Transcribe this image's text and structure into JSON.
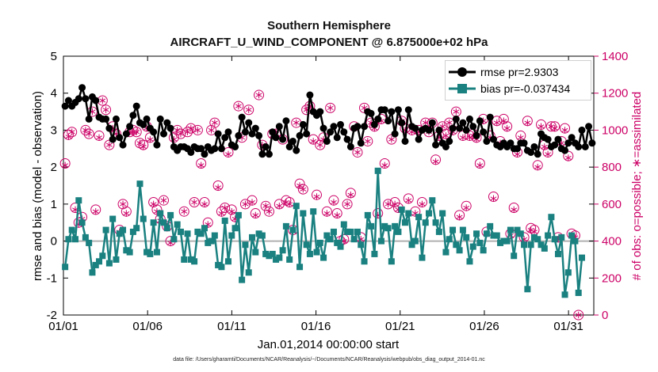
{
  "chart_data": {
    "type": "line",
    "title": "Southern Hemisphere",
    "subtitle": "AIRCRAFT_U_WIND_COMPONENT @ 6.875000e+02 hPa",
    "xlabel": "Jan.01,2014 00:00:00 start",
    "ylabel": "rmse and bias (model - observation)",
    "ylabel_right": "# of obs: o=possible; ∗=assimilated",
    "footer": "data file: /Users/gharamti/Documents/NCAR/Reanalysis/~/Documents/NCAR/Reanalysis/webpub/obs_diag_output_2014-01.nc",
    "x_ticks": [
      "01/01",
      "01/06",
      "01/11",
      "01/16",
      "01/21",
      "01/26",
      "01/31"
    ],
    "xlim_days": [
      1,
      32.5
    ],
    "ylim": [
      -2,
      5
    ],
    "yticks": [
      "-2",
      "-1",
      "0",
      "1",
      "2",
      "3",
      "4",
      "5"
    ],
    "ylim_right": [
      0,
      1400
    ],
    "yticks_right": [
      "0",
      "200",
      "400",
      "600",
      "800",
      "1000",
      "1200",
      "1400"
    ],
    "grid": false,
    "legend_position": "top-right",
    "colors": {
      "rmse": "#000000",
      "bias": "#1a8080",
      "obs": "#cc0066",
      "zero_line": "#b0b0b0"
    },
    "series": [
      {
        "name": "rmse pr=2.9303",
        "marker": "circle",
        "values": [
          3.65,
          3.8,
          3.65,
          3.75,
          3.85,
          4.15,
          3.85,
          3.3,
          3.9,
          3.8,
          3.35,
          3.3,
          3.3,
          3.05,
          2.75,
          3.3,
          2.8,
          2.6,
          2.9,
          3.1,
          3.4,
          3.65,
          3.2,
          3.15,
          3.3,
          3.05,
          2.95,
          2.6,
          3.3,
          2.9,
          3.2,
          3.05,
          2.55,
          2.45,
          2.55,
          2.55,
          2.5,
          2.4,
          2.55,
          2.5,
          2.5,
          2.35,
          2.55,
          2.45,
          2.5,
          2.9,
          2.5,
          2.8,
          2.95,
          2.6,
          2.55,
          2.85,
          3.35,
          2.95,
          3.2,
          2.9,
          3.05,
          2.85,
          2.35,
          2.55,
          2.35,
          2.95,
          2.8,
          3.1,
          2.75,
          3.25,
          2.55,
          2.7,
          2.45,
          2.85,
          3.15,
          2.9,
          3.95,
          3.5,
          3.4,
          3.5,
          3.05,
          2.7,
          2.95,
          3.1,
          2.8,
          3.15,
          2.95,
          2.75,
          2.55,
          3.05,
          3.1,
          2.65,
          3.1,
          3.5,
          3.45,
          3.15,
          3.3,
          3.55,
          3.55,
          3.25,
          3.5,
          2.9,
          3.55,
          3.2,
          2.7,
          3.55,
          3.1,
          3.05,
          2.75,
          3.0,
          3.05,
          3.0,
          3.2,
          2.6,
          3.0,
          2.65,
          2.55,
          2.7,
          3.05,
          3.3,
          3.05,
          3.2,
          3.0,
          3.3,
          3.1,
          2.85,
          3.25,
          2.95,
          2.7,
          3.35,
          2.75,
          2.6,
          2.55,
          2.65,
          2.55,
          2.65,
          2.5,
          2.5,
          2.65,
          2.65,
          2.45,
          2.4,
          2.55,
          2.35,
          2.9,
          2.8,
          2.75,
          2.55,
          2.6,
          2.75,
          2.5,
          2.45,
          2.65,
          2.8,
          2.65,
          2.55,
          3.0,
          2.55,
          3.1,
          2.65
        ]
      },
      {
        "name": "bias pr=-0.037434",
        "marker": "square",
        "values": [
          -0.7,
          0.05,
          0.3,
          0.05,
          1.1,
          0.5,
          0.1,
          -0.05,
          -0.85,
          -0.65,
          -0.55,
          -0.4,
          0.3,
          -0.6,
          0.6,
          -0.5,
          0.2,
          0.3,
          -0.25,
          -0.3,
          0.25,
          0.35,
          1.55,
          0.6,
          -0.3,
          -0.35,
          0.5,
          -0.3,
          0.75,
          0.5,
          0.35,
          0.7,
          0.05,
          0.45,
          0.25,
          -0.5,
          0.2,
          -0.5,
          -0.55,
          0.25,
          0.2,
          0.35,
          -0.05,
          0.0,
          0.15,
          -0.65,
          -0.7,
          0.55,
          -0.55,
          0.15,
          0.35,
          0.7,
          -1.05,
          -0.1,
          -0.85,
          0.1,
          -0.3,
          0.2,
          0.15,
          -0.35,
          -0.4,
          -0.35,
          -0.5,
          -0.45,
          -0.25,
          0.4,
          -0.5,
          0.3,
          0.95,
          -0.7,
          0.75,
          -0.1,
          -0.35,
          0.8,
          -0.3,
          -0.05,
          -0.45,
          0.15,
          0.05,
          0.25,
          -0.05,
          -0.15,
          0.45,
          0.25,
          0.25,
          0.05,
          0.25,
          -0.1,
          -0.55,
          0.7,
          0.4,
          -0.35,
          1.9,
          0.0,
          0.4,
          0.35,
          -0.55,
          0.4,
          0.25,
          0.85,
          0.5,
          0.75,
          -0.1,
          0.0,
          0.65,
          -0.45,
          0.5,
          0.75,
          1.1,
          0.5,
          0.25,
          0.75,
          -0.3,
          0.05,
          0.3,
          -0.1,
          -0.25,
          0.3,
          0.1,
          -0.55,
          -0.15,
          0.2,
          -0.05,
          -0.25,
          0.2,
          0.4,
          0.15,
          0.15,
          -0.05,
          0.0,
          0.0,
          0.3,
          -0.4,
          0.3,
          0.2,
          -0.1,
          -1.3,
          -0.1,
          0.1,
          0.05,
          -0.1,
          -0.2,
          0.15,
          0.65,
          0.05,
          -0.35,
          0.1,
          -1.45,
          -0.85,
          0.15,
          0.0,
          -1.4,
          -0.45
        ]
      },
      {
        "name": "obs possible",
        "marker": "o",
        "axis": "right",
        "values": [
          820,
          975,
          990,
          580,
          500,
          530,
          1000,
          980,
          1100,
          570,
          970,
          1160,
          1110,
          920,
          1020,
          980,
          460,
          600,
          560,
          990,
          1000,
          990,
          930,
          920,
          1020,
          960,
          610,
          570,
          520,
          620,
          480,
          400,
          960,
          1000,
          980,
          560,
          990,
          1010,
          610,
          1000,
          820,
          610,
          500,
          1000,
          1040,
          700,
          560,
          580,
          880,
          570,
          530,
          1130,
          960,
          600,
          1110,
          620,
          550,
          1190,
          920,
          590,
          560,
          980,
          980,
          600,
          950,
          620,
          610,
          460,
          1040,
          710,
          680,
          1110,
          1130,
          950,
          650,
          920,
          960,
          560,
          1120,
          620,
          550,
          400,
          410,
          600,
          660,
          1020,
          880,
          420,
          1120,
          940,
          1040,
          1020,
          550,
          1060,
          820,
          600,
          950,
          610,
          580,
          1050,
          1010,
          630,
          1000,
          560,
          1000,
          610,
          1040,
          990,
          1040,
          840,
          970,
          1020,
          980,
          1040,
          1000,
          1100,
          540,
          970,
          590,
          970,
          980,
          960,
          820,
          1060,
          450,
          970,
          640,
          1050,
          940,
          1060,
          1020,
          440,
          580,
          880,
          970,
          420,
          1050,
          470,
          460,
          810,
          1030,
          920,
          880,
          1020,
          1020,
          420,
          940,
          1010,
          860,
          440,
          430,
          0
        ]
      },
      {
        "name": "obs assimilated",
        "marker": "*",
        "axis": "right",
        "values": [
          810,
          965,
          990,
          570,
          490,
          520,
          1000,
          980,
          1100,
          560,
          960,
          1160,
          1110,
          920,
          1010,
          980,
          450,
          600,
          550,
          990,
          990,
          990,
          930,
          910,
          1010,
          950,
          600,
          560,
          510,
          620,
          480,
          390,
          950,
          1000,
          980,
          560,
          990,
          1010,
          610,
          1000,
          810,
          600,
          490,
          1000,
          1040,
          690,
          550,
          580,
          870,
          560,
          520,
          1130,
          960,
          600,
          1110,
          610,
          540,
          1190,
          920,
          590,
          560,
          970,
          980,
          590,
          950,
          610,
          600,
          450,
          1040,
          700,
          680,
          1110,
          1130,
          940,
          640,
          920,
          950,
          550,
          1120,
          610,
          540,
          390,
          400,
          600,
          650,
          1010,
          880,
          410,
          1120,
          940,
          1040,
          1010,
          540,
          1050,
          810,
          600,
          950,
          600,
          570,
          1050,
          1000,
          620,
          990,
          550,
          990,
          600,
          1040,
          990,
          1040,
          830,
          960,
          1020,
          970,
          1040,
          990,
          1100,
          530,
          960,
          580,
          960,
          970,
          950,
          810,
          1050,
          440,
          960,
          630,
          1040,
          930,
          1050,
          1010,
          430,
          570,
          870,
          960,
          410,
          1040,
          460,
          450,
          800,
          1020,
          910,
          870,
          1020,
          1010,
          410,
          930,
          1000,
          850,
          430,
          420,
          0
        ]
      }
    ]
  }
}
